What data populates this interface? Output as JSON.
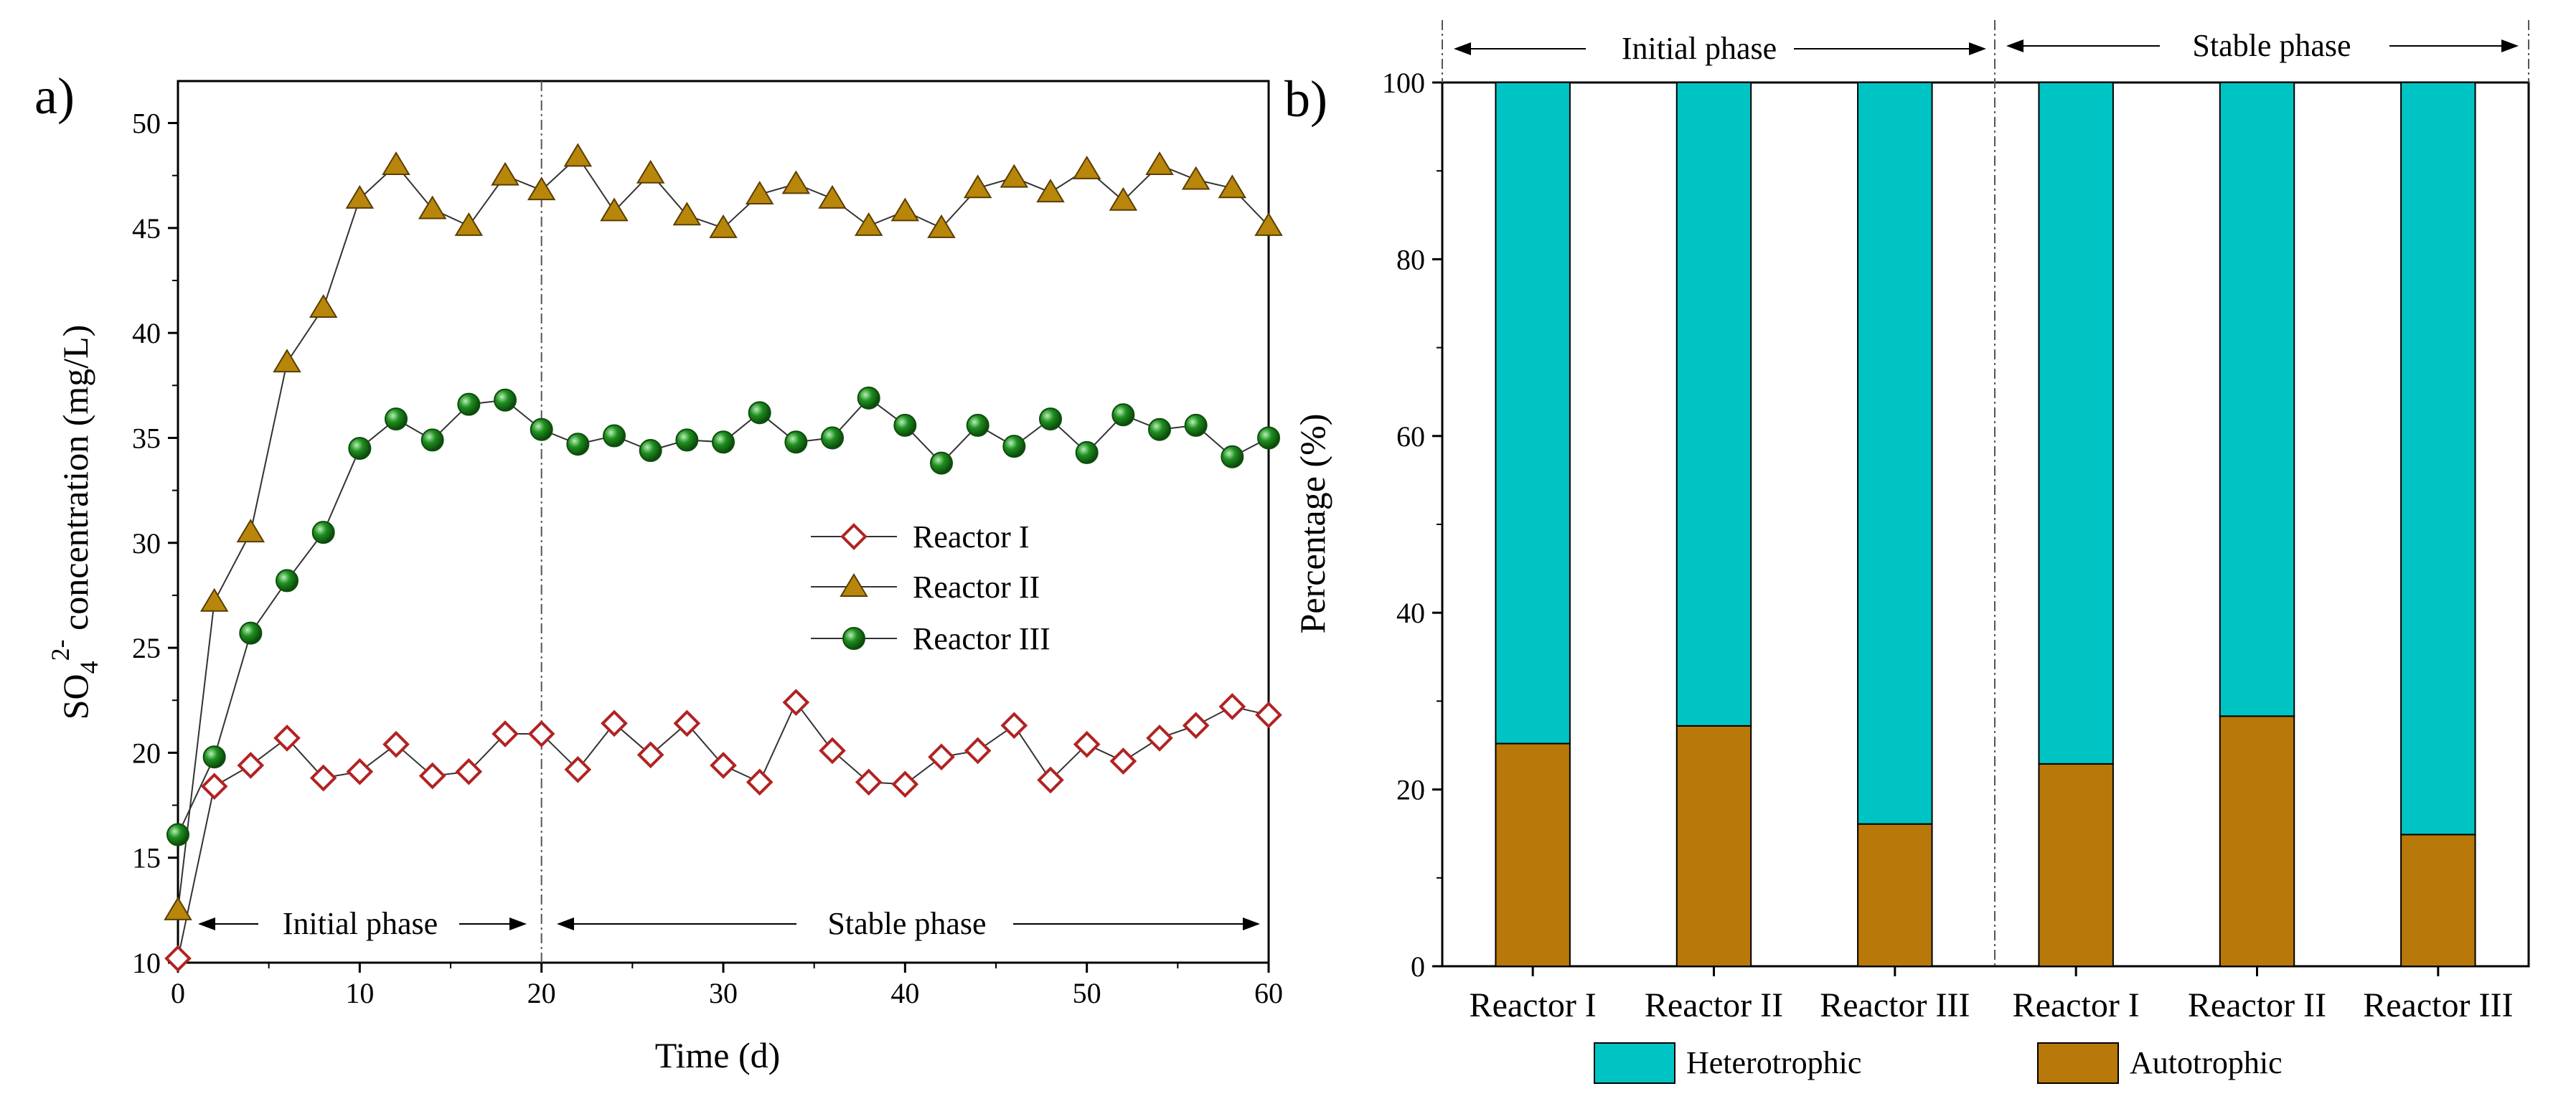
{
  "colors": {
    "reactor_i": "#b22222",
    "reactor_ii_fill": "#b8860b",
    "reactor_iii": "#1a7a1a",
    "heterotrophic": "#00c4c4",
    "autotrophic": "#b8780a",
    "axis": "#000000"
  },
  "chart_data": [
    {
      "type": "line",
      "panel_label": "a)",
      "xlabel": "Time (d)",
      "ylabel_main": "SO",
      "ylabel_sub": "4",
      "ylabel_sup": "2-",
      "ylabel_tail": " concentration (mg/L)",
      "xlim": [
        0,
        60
      ],
      "ylim": [
        10,
        52
      ],
      "xticks": [
        "0",
        "10",
        "20",
        "30",
        "40",
        "50",
        "60"
      ],
      "yticks": [
        "10",
        "15",
        "20",
        "25",
        "30",
        "35",
        "40",
        "45",
        "50"
      ],
      "phase_divider_x": 20,
      "phases": [
        "Initial phase",
        "Stable phase"
      ],
      "legend_position": "center-right",
      "x": [
        0,
        2,
        4,
        6,
        8,
        10,
        12,
        14,
        16,
        18,
        20,
        22,
        24,
        26,
        28,
        30,
        32,
        34,
        36,
        38,
        40,
        42,
        44,
        46,
        48,
        50,
        52,
        54,
        56,
        58,
        60
      ],
      "series": [
        {
          "name": "Reactor I",
          "marker": "diamond-open",
          "values": [
            10.2,
            18.4,
            19.4,
            20.7,
            18.8,
            19.1,
            20.4,
            18.9,
            19.1,
            20.9,
            20.9,
            19.2,
            21.4,
            19.9,
            21.4,
            19.4,
            18.6,
            22.4,
            20.1,
            18.6,
            18.5,
            19.8,
            20.1,
            21.3,
            18.7,
            20.4,
            19.6,
            20.7,
            21.3,
            22.2,
            21.8
          ]
        },
        {
          "name": "Reactor II",
          "marker": "triangle",
          "values": [
            12.5,
            27.2,
            30.5,
            38.6,
            41.2,
            46.4,
            48.0,
            45.9,
            45.1,
            47.5,
            46.8,
            48.4,
            45.8,
            47.6,
            45.6,
            45.0,
            46.6,
            47.1,
            46.4,
            45.1,
            45.8,
            45.0,
            46.9,
            47.4,
            46.7,
            47.8,
            46.3,
            48.0,
            47.3,
            46.9,
            45.1
          ]
        },
        {
          "name": "Reactor III",
          "marker": "circle",
          "values": [
            16.1,
            19.8,
            25.7,
            28.2,
            30.5,
            34.5,
            35.9,
            34.9,
            36.6,
            36.8,
            35.4,
            34.7,
            35.1,
            34.4,
            34.9,
            34.8,
            36.2,
            34.8,
            35.0,
            36.9,
            35.6,
            33.8,
            35.6,
            34.6,
            35.9,
            34.3,
            36.1,
            35.4,
            35.6,
            34.1,
            35.0
          ]
        }
      ]
    },
    {
      "type": "bar",
      "stacked": true,
      "panel_label": "b)",
      "ylabel": "Percentage (%)",
      "ylim": [
        0,
        100
      ],
      "yticks": [
        "0",
        "20",
        "40",
        "60",
        "80",
        "100"
      ],
      "categories": [
        "Reactor I",
        "Reactor II",
        "Reactor III",
        "Reactor I",
        "Reactor II",
        "Reactor III"
      ],
      "phases": [
        "Initial phase",
        "Stable phase"
      ],
      "legend_position": "bottom",
      "series": [
        {
          "name": "Autotrophic",
          "values": [
            25.2,
            27.2,
            16.1,
            22.9,
            28.3,
            14.9
          ]
        },
        {
          "name": "Heterotrophic",
          "values": [
            74.8,
            72.8,
            83.9,
            77.1,
            71.7,
            85.1
          ]
        }
      ]
    }
  ]
}
